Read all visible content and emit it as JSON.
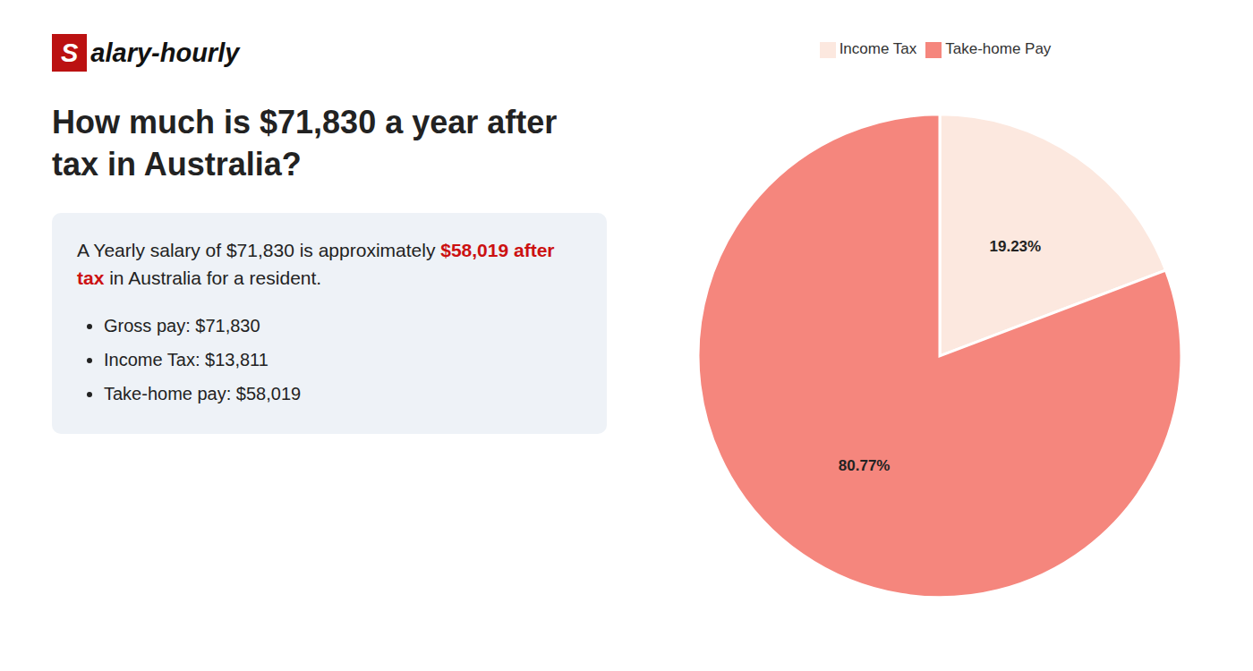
{
  "chart_data": {
    "type": "pie",
    "title": "How much is $71,830 a year after tax in Australia?",
    "annotations": [
      {
        "text": "Salary-hourly",
        "color": "#bb1111"
      },
      [
        "A Yearly salary of $71,830 is approximately",
        {
          "text": "$58,019 after tax",
          "color": "#cc1111"
        },
        "in Australia for a resident."
      ],
      "Gross pay: $71,830",
      "Income Tax: $13,811",
      "Take-home pay: $58,019"
    ],
    "categories": [
      "Income Tax",
      "Take-home Pay"
    ],
    "values": [
      19.23,
      80.77
    ],
    "value_labels": [
      "19.23%",
      "80.77%"
    ],
    "colors": [
      "#fce8df",
      "#f5867d"
    ],
    "data_labels": true,
    "legend": "top"
  }
}
